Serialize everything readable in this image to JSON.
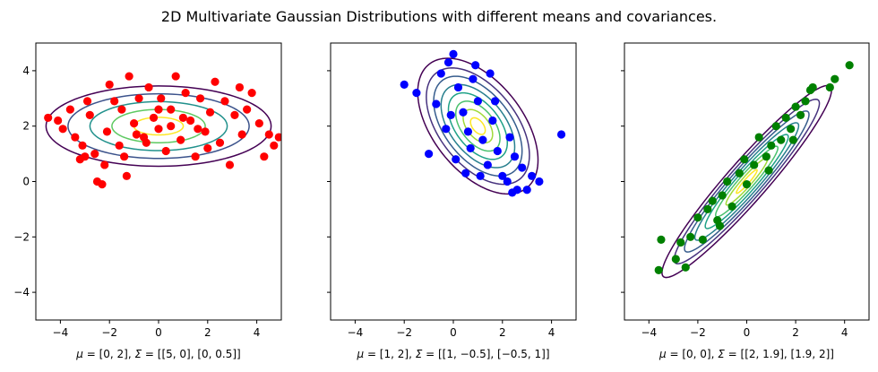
{
  "figure": {
    "suptitle": "2D Multivariate Gaussian Distributions with different means and covariances."
  },
  "chart_data": [
    {
      "type": "scatter",
      "xlabel_parts": [
        "μ",
        " = [0, 2], ",
        "Σ",
        " = [[5, 0], [0, 0.5]]"
      ],
      "xlim": [
        -5,
        5
      ],
      "ylim": [
        -5,
        5
      ],
      "xticks": [
        -4,
        -2,
        0,
        2,
        4
      ],
      "yticks": [
        -4,
        -2,
        0,
        2,
        4
      ],
      "show_yticklabels": true,
      "mean": [
        0,
        2
      ],
      "cov": [
        [
          5,
          0
        ],
        [
          0,
          0.5
        ]
      ],
      "point_color": "#ff0000",
      "contour_levels_mahalanobis": [
        0.45,
        0.85,
        1.25,
        1.65,
        2.05
      ],
      "contour_colors": [
        "#fde725",
        "#5ec962",
        "#21918c",
        "#3b528b",
        "#440154"
      ],
      "points": [
        [
          -4.5,
          2.3
        ],
        [
          -4.1,
          2.2
        ],
        [
          -3.6,
          2.6
        ],
        [
          -3.4,
          1.6
        ],
        [
          -3.2,
          0.8
        ],
        [
          -3.0,
          0.9
        ],
        [
          -2.8,
          2.4
        ],
        [
          -2.6,
          1.0
        ],
        [
          -2.5,
          0.0
        ],
        [
          -2.3,
          -0.1
        ],
        [
          -2.2,
          0.6
        ],
        [
          -2.0,
          3.5
        ],
        [
          -1.8,
          2.9
        ],
        [
          -1.6,
          1.3
        ],
        [
          -1.4,
          0.9
        ],
        [
          -1.3,
          0.2
        ],
        [
          -1.2,
          3.8
        ],
        [
          -1.0,
          2.1
        ],
        [
          -0.8,
          3.0
        ],
        [
          -0.6,
          1.6
        ],
        [
          -0.4,
          3.4
        ],
        [
          -0.2,
          2.3
        ],
        [
          0.0,
          1.9
        ],
        [
          0.1,
          3.0
        ],
        [
          0.3,
          1.1
        ],
        [
          0.5,
          2.6
        ],
        [
          0.7,
          3.8
        ],
        [
          0.9,
          1.5
        ],
        [
          1.1,
          3.2
        ],
        [
          1.3,
          2.2
        ],
        [
          1.5,
          0.9
        ],
        [
          1.7,
          3.0
        ],
        [
          1.9,
          1.8
        ],
        [
          2.1,
          2.5
        ],
        [
          2.3,
          3.6
        ],
        [
          2.5,
          1.4
        ],
        [
          2.7,
          2.9
        ],
        [
          2.9,
          0.6
        ],
        [
          3.1,
          2.4
        ],
        [
          3.4,
          1.7
        ],
        [
          3.6,
          2.6
        ],
        [
          3.8,
          3.2
        ],
        [
          4.1,
          2.1
        ],
        [
          4.3,
          0.9
        ],
        [
          4.5,
          1.7
        ],
        [
          4.7,
          1.3
        ],
        [
          4.9,
          1.6
        ],
        [
          -3.9,
          1.9
        ],
        [
          -2.9,
          2.9
        ],
        [
          -0.5,
          1.4
        ],
        [
          0.5,
          2.0
        ],
        [
          1.0,
          2.3
        ],
        [
          -1.5,
          2.6
        ],
        [
          2.0,
          1.2
        ],
        [
          -3.1,
          1.3
        ],
        [
          3.3,
          3.4
        ],
        [
          -2.1,
          1.8
        ],
        [
          0.0,
          2.6
        ],
        [
          1.6,
          1.9
        ],
        [
          -0.9,
          1.7
        ]
      ]
    },
    {
      "type": "scatter",
      "xlabel_parts": [
        "μ",
        " = [1, 2], ",
        "Σ",
        " = [[1, −0.5], [−0.5, 1]]"
      ],
      "xlim": [
        -5,
        5
      ],
      "ylim": [
        -5,
        5
      ],
      "xticks": [
        -4,
        -2,
        0,
        2,
        4
      ],
      "yticks": [
        -4,
        -2,
        0,
        2,
        4
      ],
      "show_yticklabels": false,
      "mean": [
        1,
        2
      ],
      "cov": [
        [
          1,
          -0.5
        ],
        [
          -0.5,
          1
        ]
      ],
      "point_color": "#0000ff",
      "contour_levels_mahalanobis": [
        0.3,
        0.6,
        0.9,
        1.2,
        1.5,
        1.8,
        2.1,
        2.45
      ],
      "contour_colors": [
        "#fde725",
        "#a0da39",
        "#4ac16d",
        "#1fa187",
        "#277f8e",
        "#365c8d",
        "#46327e",
        "#440154"
      ],
      "points": [
        [
          -2.0,
          3.5
        ],
        [
          -1.5,
          3.2
        ],
        [
          -1.0,
          1.0
        ],
        [
          -0.7,
          2.8
        ],
        [
          -0.5,
          3.9
        ],
        [
          -0.2,
          4.3
        ],
        [
          0.0,
          4.6
        ],
        [
          0.2,
          3.4
        ],
        [
          0.4,
          2.5
        ],
        [
          0.6,
          1.8
        ],
        [
          0.8,
          3.7
        ],
        [
          1.0,
          2.9
        ],
        [
          1.2,
          1.5
        ],
        [
          1.4,
          0.6
        ],
        [
          1.6,
          2.2
        ],
        [
          1.8,
          1.1
        ],
        [
          2.0,
          0.2
        ],
        [
          2.2,
          0.0
        ],
        [
          2.4,
          -0.4
        ],
        [
          2.6,
          -0.3
        ],
        [
          2.8,
          0.5
        ],
        [
          3.0,
          -0.3
        ],
        [
          3.2,
          0.2
        ],
        [
          3.5,
          0.0
        ],
        [
          4.4,
          1.7
        ],
        [
          -0.3,
          1.9
        ],
        [
          0.1,
          0.8
        ],
        [
          0.5,
          0.3
        ],
        [
          1.5,
          3.9
        ],
        [
          0.9,
          4.2
        ],
        [
          -0.1,
          2.4
        ],
        [
          1.7,
          2.9
        ],
        [
          2.3,
          1.6
        ],
        [
          0.7,
          1.2
        ],
        [
          1.1,
          0.2
        ],
        [
          2.5,
          0.9
        ]
      ]
    },
    {
      "type": "scatter",
      "xlabel_parts": [
        "μ",
        " = [0, 0], ",
        "Σ",
        " = [[2, 1.9], [1.9, 2]]"
      ],
      "xlim": [
        -5,
        5
      ],
      "ylim": [
        -5,
        5
      ],
      "xticks": [
        -4,
        -2,
        0,
        2,
        4
      ],
      "yticks": [
        -4,
        -2,
        0,
        2,
        4
      ],
      "show_yticklabels": false,
      "mean": [
        0,
        0
      ],
      "cov": [
        [
          2,
          1.9
        ],
        [
          1.9,
          2
        ]
      ],
      "point_color": "#008000",
      "contour_levels_mahalanobis": [
        0.3,
        0.6,
        0.9,
        1.2,
        1.5,
        1.8,
        2.1,
        2.45
      ],
      "contour_colors": [
        "#fde725",
        "#a0da39",
        "#4ac16d",
        "#1fa187",
        "#277f8e",
        "#365c8d",
        "#46327e",
        "#440154"
      ],
      "points": [
        [
          -3.6,
          -3.2
        ],
        [
          -3.5,
          -2.1
        ],
        [
          -2.9,
          -2.8
        ],
        [
          -2.7,
          -2.2
        ],
        [
          -2.5,
          -3.1
        ],
        [
          -2.3,
          -2.0
        ],
        [
          -2.0,
          -1.3
        ],
        [
          -1.8,
          -2.1
        ],
        [
          -1.6,
          -1.0
        ],
        [
          -1.4,
          -0.7
        ],
        [
          -1.2,
          -1.4
        ],
        [
          -1.0,
          -0.5
        ],
        [
          -0.8,
          0.0
        ],
        [
          -0.6,
          -0.9
        ],
        [
          -0.3,
          0.3
        ],
        [
          0.0,
          -0.1
        ],
        [
          0.3,
          0.6
        ],
        [
          0.5,
          1.6
        ],
        [
          0.8,
          0.9
        ],
        [
          1.0,
          1.3
        ],
        [
          1.2,
          2.0
        ],
        [
          1.4,
          1.5
        ],
        [
          1.6,
          2.3
        ],
        [
          1.8,
          1.9
        ],
        [
          2.0,
          2.7
        ],
        [
          2.2,
          2.4
        ],
        [
          2.4,
          2.9
        ],
        [
          2.6,
          3.3
        ],
        [
          2.7,
          3.4
        ],
        [
          3.4,
          3.4
        ],
        [
          3.6,
          3.7
        ],
        [
          4.2,
          4.2
        ],
        [
          -0.1,
          0.8
        ],
        [
          0.9,
          0.4
        ],
        [
          -1.1,
          -1.6
        ],
        [
          1.9,
          1.5
        ]
      ]
    }
  ]
}
